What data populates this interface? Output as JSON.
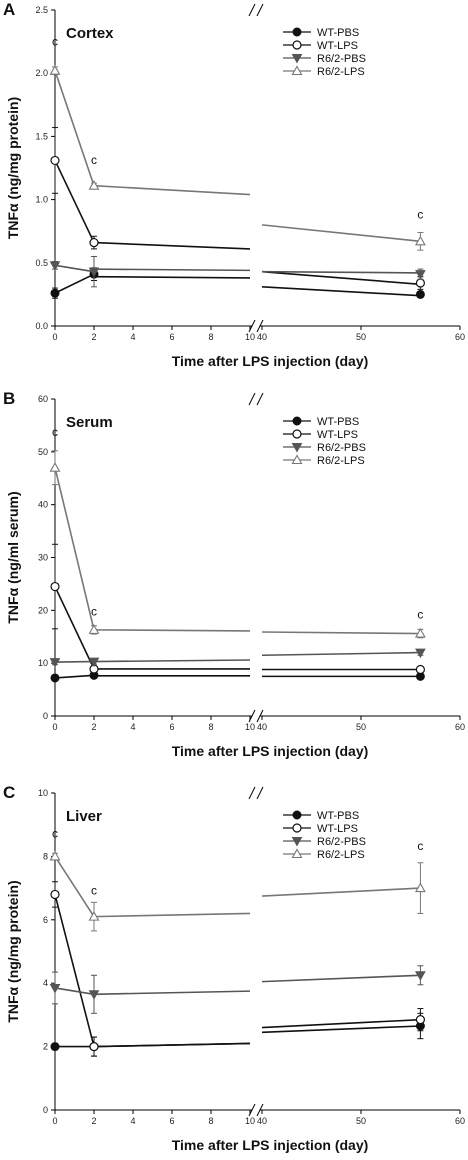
{
  "chart_data": [
    {
      "type": "line",
      "panel_label": "A",
      "title": "Cortex",
      "ylabel": "TNFα (ng/mg protein)",
      "xlabel": "Time after LPS injection (day)",
      "ylim": [
        0,
        2.5
      ],
      "yticks": [
        "0.0",
        "0.5",
        "1.0",
        "1.5",
        "2.0",
        "2.5"
      ],
      "xticks": [
        "0",
        "2",
        "4",
        "6",
        "8",
        "10",
        "40",
        "50",
        "60"
      ],
      "broken_axis": {
        "segments": [
          [
            0,
            10
          ],
          [
            40,
            60
          ]
        ]
      },
      "legend_position": "top-right",
      "annotations": [
        {
          "text": "c",
          "x": 0,
          "y": 2.22
        },
        {
          "text": "c",
          "x": 2,
          "y": 1.28
        },
        {
          "text": "c",
          "x": 56,
          "y": 0.85
        }
      ],
      "series": [
        {
          "name": "WT-PBS",
          "marker": "circle-filled",
          "color": "#111111",
          "x": [
            0,
            2,
            56
          ],
          "y": [
            0.26,
            0.41,
            0.25
          ],
          "err": [
            0.04,
            0.05,
            0.02
          ],
          "trend": [
            0.39,
            0.38,
            0.31,
            0.24
          ]
        },
        {
          "name": "WT-LPS",
          "marker": "circle-open",
          "color": "#111111",
          "x": [
            0,
            2,
            56
          ],
          "y": [
            1.31,
            0.66,
            0.34
          ],
          "err": [
            0.26,
            0.05,
            0.05
          ],
          "trend": [
            0.66,
            0.61,
            0.43,
            0.33
          ]
        },
        {
          "name": "R6/2-PBS",
          "marker": "triangle-down-filled",
          "color": "#555555",
          "x": [
            0,
            2,
            56
          ],
          "y": [
            0.48,
            0.43,
            0.41
          ],
          "err": [
            0.03,
            0.12,
            0.04
          ],
          "trend": [
            0.45,
            0.44,
            0.43,
            0.42
          ]
        },
        {
          "name": "R6/2-LPS",
          "marker": "triangle-up-open",
          "color": "#777777",
          "x": [
            0,
            2,
            56
          ],
          "y": [
            2.02,
            1.11,
            0.67
          ],
          "err": [
            0.03,
            0.02,
            0.07
          ],
          "trend": [
            1.11,
            1.04,
            0.8,
            0.67
          ]
        }
      ]
    },
    {
      "type": "line",
      "panel_label": "B",
      "title": "Serum",
      "ylabel": "TNFα (ng/ml serum)",
      "xlabel": "Time after LPS injection (day)",
      "ylim": [
        0,
        60
      ],
      "yticks": [
        "0",
        "10",
        "20",
        "30",
        "40",
        "50",
        "60"
      ],
      "xticks": [
        "0",
        "2",
        "4",
        "6",
        "8",
        "10",
        "40",
        "50",
        "60"
      ],
      "broken_axis": {
        "segments": [
          [
            0,
            10
          ],
          [
            40,
            60
          ]
        ]
      },
      "legend_position": "top-right",
      "annotations": [
        {
          "text": "c",
          "x": 0,
          "y": 53
        },
        {
          "text": "c",
          "x": 2,
          "y": 19
        },
        {
          "text": "c",
          "x": 56,
          "y": 18.5
        }
      ],
      "series": [
        {
          "name": "WT-PBS",
          "marker": "circle-filled",
          "color": "#111111",
          "x": [
            0,
            2,
            56
          ],
          "y": [
            7.2,
            7.7,
            7.5
          ],
          "err": [
            0.3,
            0.3,
            0.3
          ],
          "trend": [
            7.6,
            7.6,
            7.5,
            7.5
          ]
        },
        {
          "name": "WT-LPS",
          "marker": "circle-open",
          "color": "#111111",
          "x": [
            0,
            2,
            56
          ],
          "y": [
            24.5,
            8.9,
            8.8
          ],
          "err": [
            8,
            0.5,
            0.5
          ],
          "trend": [
            8.9,
            8.9,
            8.8,
            8.8
          ]
        },
        {
          "name": "R6/2-PBS",
          "marker": "triangle-down-filled",
          "color": "#555555",
          "x": [
            0,
            2,
            56
          ],
          "y": [
            10.2,
            10.3,
            12.0
          ],
          "err": [
            0.5,
            0.5,
            0.5
          ],
          "trend": [
            10.3,
            10.6,
            11.5,
            12.0
          ]
        },
        {
          "name": "R6/2-LPS",
          "marker": "triangle-up-open",
          "color": "#777777",
          "x": [
            0,
            2,
            56
          ],
          "y": [
            47,
            16.3,
            15.6
          ],
          "err": [
            3.2,
            0.8,
            0.8
          ],
          "trend": [
            16.3,
            16.1,
            15.9,
            15.6
          ]
        }
      ]
    },
    {
      "type": "line",
      "panel_label": "C",
      "title": "Liver",
      "ylabel": "TNFα (ng/mg protein)",
      "xlabel": "Time after LPS injection (day)",
      "ylim": [
        0,
        10
      ],
      "yticks": [
        "0",
        "2",
        "4",
        "6",
        "8",
        "10"
      ],
      "xticks": [
        "0",
        "2",
        "4",
        "6",
        "8",
        "10",
        "40",
        "50",
        "60"
      ],
      "broken_axis": {
        "segments": [
          [
            0,
            10
          ],
          [
            40,
            60
          ]
        ]
      },
      "legend_position": "top-right",
      "annotations": [
        {
          "text": "c",
          "x": 0,
          "y": 8.6
        },
        {
          "text": "c",
          "x": 2,
          "y": 6.8
        },
        {
          "text": "c",
          "x": 56,
          "y": 8.2
        }
      ],
      "series": [
        {
          "name": "WT-PBS",
          "marker": "circle-filled",
          "color": "#111111",
          "x": [
            0,
            2,
            56
          ],
          "y": [
            2.0,
            2.0,
            2.65
          ],
          "err": [
            0.1,
            0.3,
            0.4
          ],
          "trend": [
            2.0,
            2.1,
            2.45,
            2.65
          ]
        },
        {
          "name": "WT-LPS",
          "marker": "circle-open",
          "color": "#111111",
          "x": [
            0,
            2,
            56
          ],
          "y": [
            6.8,
            2.0,
            2.85
          ],
          "err": [
            0.4,
            0.3,
            0.35
          ],
          "trend": [
            2.0,
            2.1,
            2.6,
            2.85
          ]
        },
        {
          "name": "R6/2-PBS",
          "marker": "triangle-down-filled",
          "color": "#555555",
          "x": [
            0,
            2,
            56
          ],
          "y": [
            3.85,
            3.65,
            4.25
          ],
          "err": [
            0.5,
            0.6,
            0.3
          ],
          "trend": [
            3.65,
            3.75,
            4.05,
            4.25
          ]
        },
        {
          "name": "R6/2-LPS",
          "marker": "triangle-up-open",
          "color": "#777777",
          "x": [
            0,
            2,
            56
          ],
          "y": [
            8.0,
            6.1,
            7.0
          ],
          "err": [
            0.1,
            0.45,
            0.8
          ],
          "trend": [
            6.1,
            6.2,
            6.75,
            7.0
          ]
        }
      ]
    }
  ]
}
